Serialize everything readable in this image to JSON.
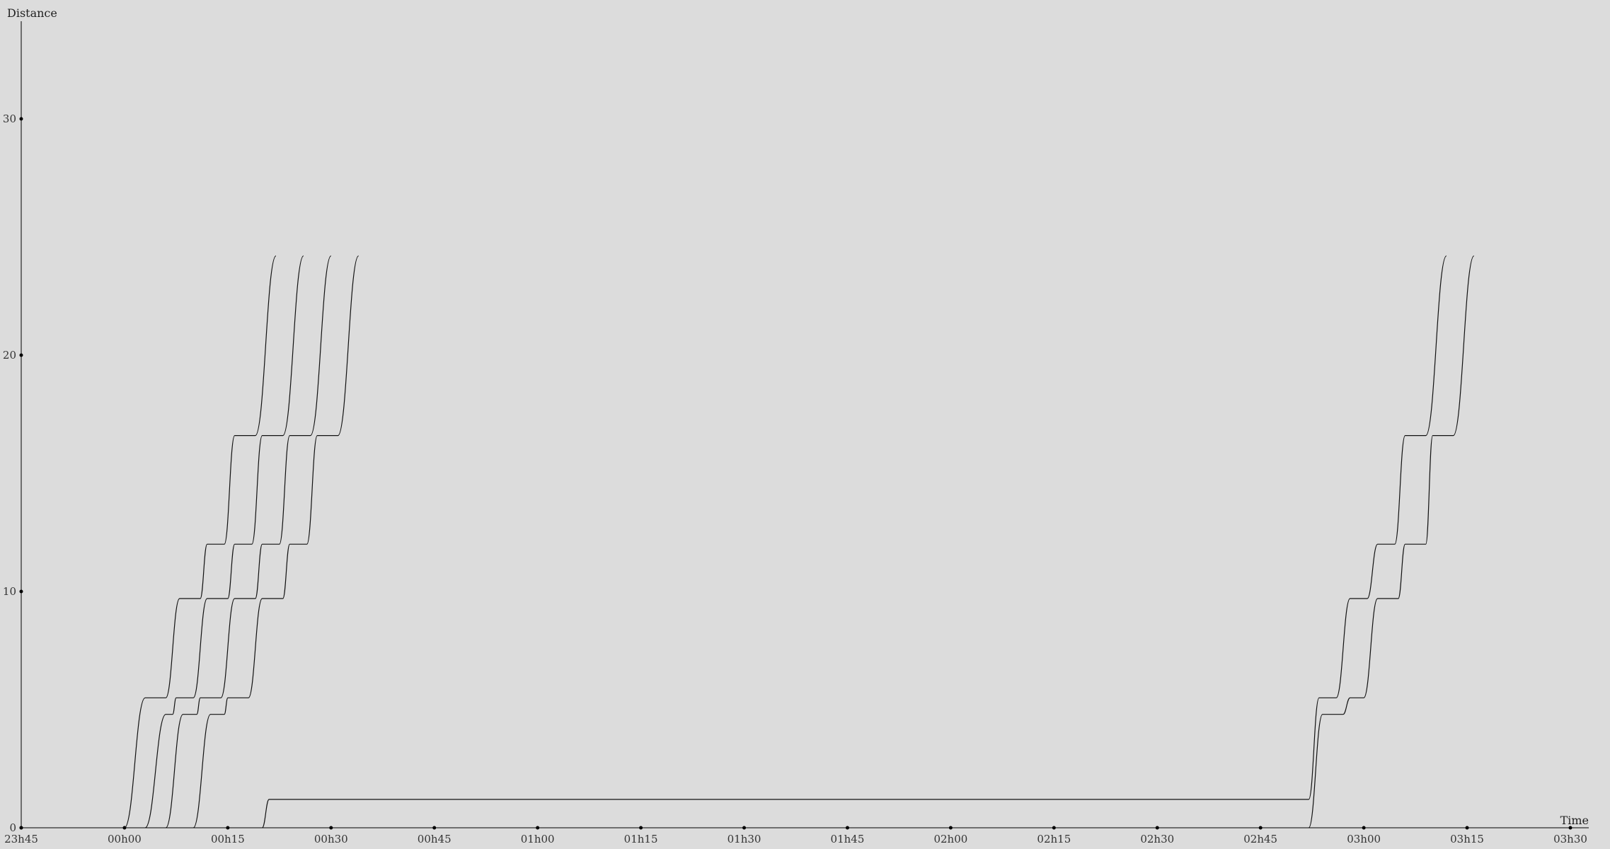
{
  "chart_data": {
    "type": "line",
    "title": "",
    "xlabel": "Time",
    "ylabel": "Distance",
    "x_domain": [
      "23h45",
      "03h30"
    ],
    "ylim": [
      0,
      34
    ],
    "grid": false,
    "x_ticks": [
      "23h45",
      "00h00",
      "00h15",
      "00h30",
      "00h45",
      "01h00",
      "01h15",
      "01h30",
      "01h45",
      "02h00",
      "02h15",
      "02h30",
      "02h45",
      "03h00",
      "03h15",
      "03h30"
    ],
    "y_ticks": [
      0,
      10,
      20,
      30
    ],
    "series": [
      {
        "points": [
          [
            "00h00",
            0
          ],
          [
            "00h03",
            5.5
          ],
          [
            "00h06",
            5.5
          ],
          [
            "00h08",
            9.7
          ],
          [
            "00h11",
            9.7
          ],
          [
            "00h12",
            12
          ],
          [
            "00h14.5",
            12
          ],
          [
            "00h16",
            16.6
          ],
          [
            "00h19",
            16.6
          ],
          [
            "00h22",
            24.2
          ]
        ]
      },
      {
        "points": [
          [
            "00h03",
            0
          ],
          [
            "00h06",
            4.8
          ],
          [
            "00h07",
            4.8
          ],
          [
            "00h07.5",
            5.5
          ],
          [
            "00h10",
            5.5
          ],
          [
            "00h12",
            9.7
          ],
          [
            "00h15",
            9.7
          ],
          [
            "00h16",
            12
          ],
          [
            "00h18.5",
            12
          ],
          [
            "00h20",
            16.6
          ],
          [
            "00h23",
            16.6
          ],
          [
            "00h26",
            24.2
          ]
        ]
      },
      {
        "points": [
          [
            "00h06",
            0
          ],
          [
            "00h08.5",
            4.8
          ],
          [
            "00h10.5",
            4.8
          ],
          [
            "00h11",
            5.5
          ],
          [
            "00h14",
            5.5
          ],
          [
            "00h16",
            9.7
          ],
          [
            "00h19",
            9.7
          ],
          [
            "00h20",
            12
          ],
          [
            "00h22.5",
            12
          ],
          [
            "00h24",
            16.6
          ],
          [
            "00h27",
            16.6
          ],
          [
            "00h30",
            24.2
          ]
        ]
      },
      {
        "points": [
          [
            "00h10",
            0
          ],
          [
            "00h12.5",
            4.8
          ],
          [
            "00h14.5",
            4.8
          ],
          [
            "00h15",
            5.5
          ],
          [
            "00h18",
            5.5
          ],
          [
            "00h20",
            9.7
          ],
          [
            "00h23",
            9.7
          ],
          [
            "00h24",
            12
          ],
          [
            "00h26.5",
            12
          ],
          [
            "00h28",
            16.6
          ],
          [
            "00h31",
            16.6
          ],
          [
            "00h34",
            24.2
          ]
        ]
      },
      {
        "points": [
          [
            "00h20",
            0
          ],
          [
            "00h21",
            1.2
          ],
          [
            "02h52",
            1.2
          ],
          [
            "02h53.5",
            5.5
          ],
          [
            "02h56",
            5.5
          ],
          [
            "02h58",
            9.7
          ],
          [
            "03h00.5",
            9.7
          ],
          [
            "03h02",
            12
          ],
          [
            "03h04.5",
            12
          ],
          [
            "03h06",
            16.6
          ],
          [
            "03h09",
            16.6
          ],
          [
            "03h12",
            24.2
          ]
        ]
      },
      {
        "points": [
          [
            "02h52",
            0
          ],
          [
            "02h54",
            4.8
          ],
          [
            "02h57",
            4.8
          ],
          [
            "02h58",
            5.5
          ],
          [
            "03h00",
            5.5
          ],
          [
            "03h02",
            9.7
          ],
          [
            "03h05",
            9.7
          ],
          [
            "03h06",
            12
          ],
          [
            "03h09",
            12
          ],
          [
            "03h10",
            16.6
          ],
          [
            "03h13",
            16.6
          ],
          [
            "03h16",
            24.2
          ]
        ]
      }
    ]
  }
}
